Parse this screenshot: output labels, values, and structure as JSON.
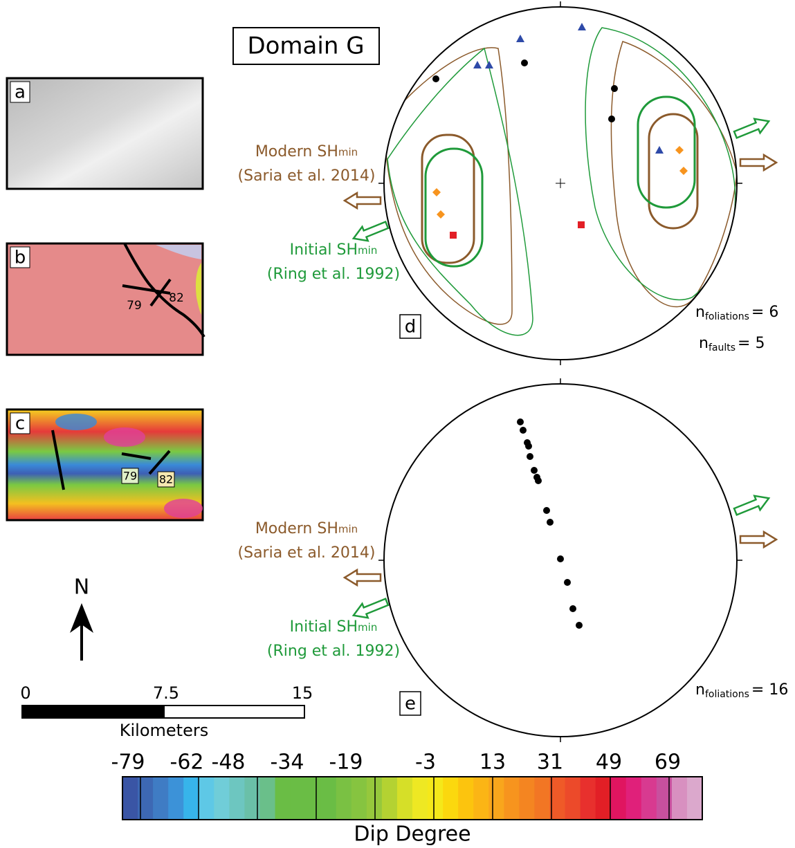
{
  "title": "Domain G",
  "panels": {
    "a": {
      "label": "a"
    },
    "b": {
      "label": "b",
      "dip_labels": [
        "79",
        "82"
      ]
    },
    "c": {
      "label": "c",
      "dip_labels": [
        "79",
        "82"
      ]
    }
  },
  "north": "N",
  "scale_bar": {
    "ticks": [
      "0",
      "7.5",
      "15"
    ],
    "unit": "Kilometers"
  },
  "color_bar": {
    "ticks": [
      "-79",
      "-62",
      "-48",
      "-34",
      "-19",
      "-3",
      "13",
      "31",
      "49",
      "69"
    ],
    "title": "Dip Degree"
  },
  "stereonets": [
    {
      "label": "d",
      "modern": {
        "text": "Modern SH",
        "sub": "min",
        "source": "(Saria et al. 2014)"
      },
      "initial": {
        "text": "Initial SH",
        "sub": "min",
        "source": "(Ring et al. 1992)"
      },
      "counts": [
        {
          "n": "n",
          "sub": "foliations",
          "value": "= 6"
        },
        {
          "n": "n",
          "sub": "faults",
          "value": "= 5"
        }
      ]
    },
    {
      "label": "e",
      "modern": {
        "text": "Modern SH",
        "sub": "min",
        "source": "(Saria et al. 2014)"
      },
      "initial": {
        "text": "Initial SH",
        "sub": "min",
        "source": "(Ring et al. 1992)"
      },
      "counts": [
        {
          "n": "n",
          "sub": "foliations",
          "value": "= 16"
        }
      ]
    }
  ]
}
